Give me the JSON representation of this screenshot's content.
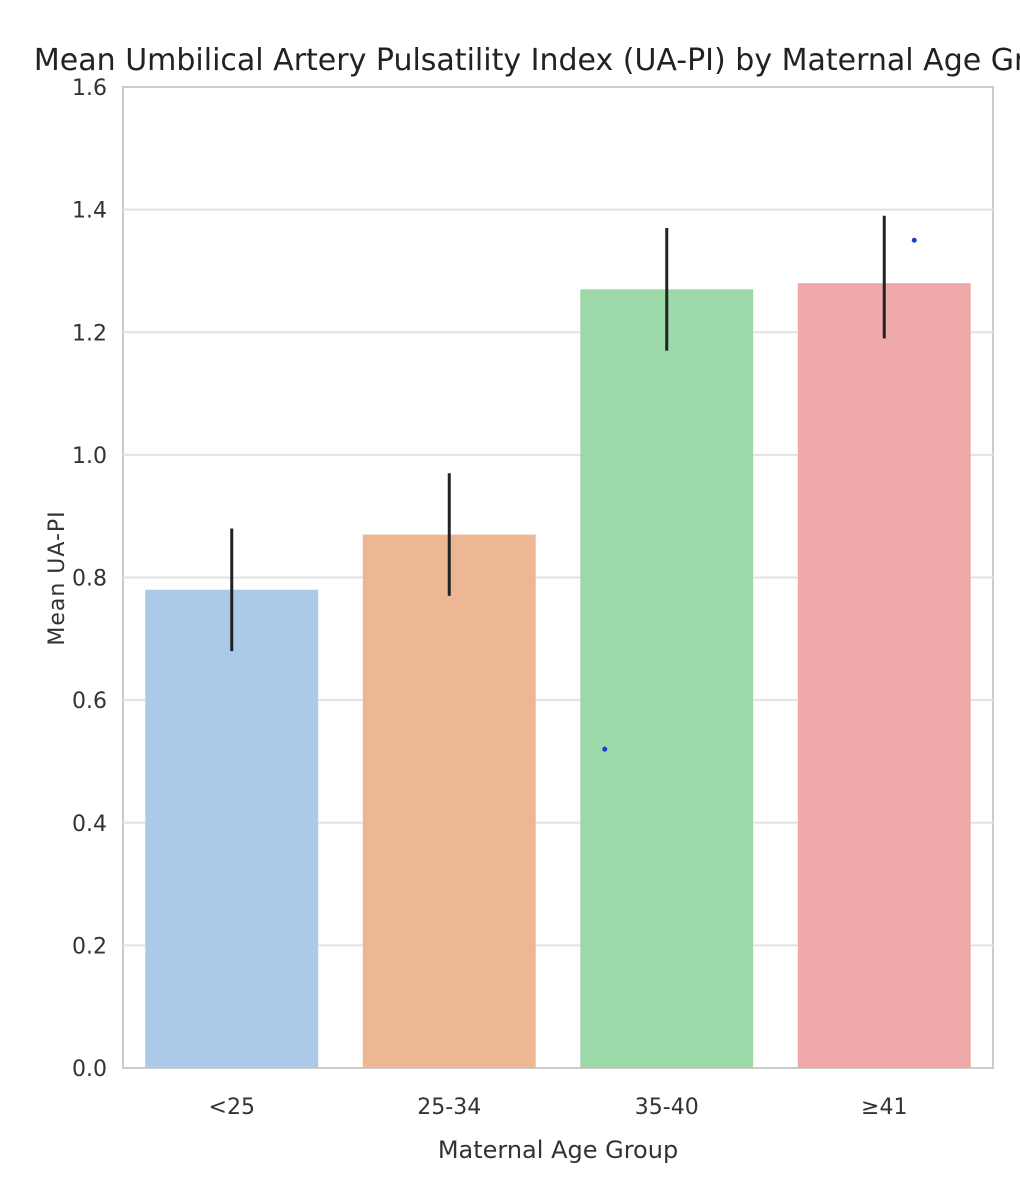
{
  "chart_data": {
    "type": "bar",
    "title": "Mean Umbilical Artery Pulsatility Index (UA-PI) by Maternal Age Group",
    "xlabel": "Maternal Age Group",
    "ylabel": "Mean UA-PI",
    "ylim": [
      0,
      1.6
    ],
    "yticks": [
      "0.0",
      "0.2",
      "0.4",
      "0.6",
      "0.8",
      "1.0",
      "1.2",
      "1.4",
      "1.6"
    ],
    "categories": [
      "<25",
      "25-34",
      "35-40",
      "≥41"
    ],
    "values": [
      0.78,
      0.87,
      1.27,
      1.28
    ],
    "error_low": [
      0.68,
      0.77,
      1.17,
      1.19
    ],
    "error_high": [
      0.88,
      0.97,
      1.37,
      1.39
    ],
    "colors": [
      "#abc9e8",
      "#ecb792",
      "#9cd8a8",
      "#f0a9aa"
    ],
    "outliers": [
      {
        "category": "35-40",
        "value": 0.52
      },
      {
        "category": "≥41",
        "value": 1.35
      }
    ],
    "grid": true,
    "legend": "none"
  }
}
